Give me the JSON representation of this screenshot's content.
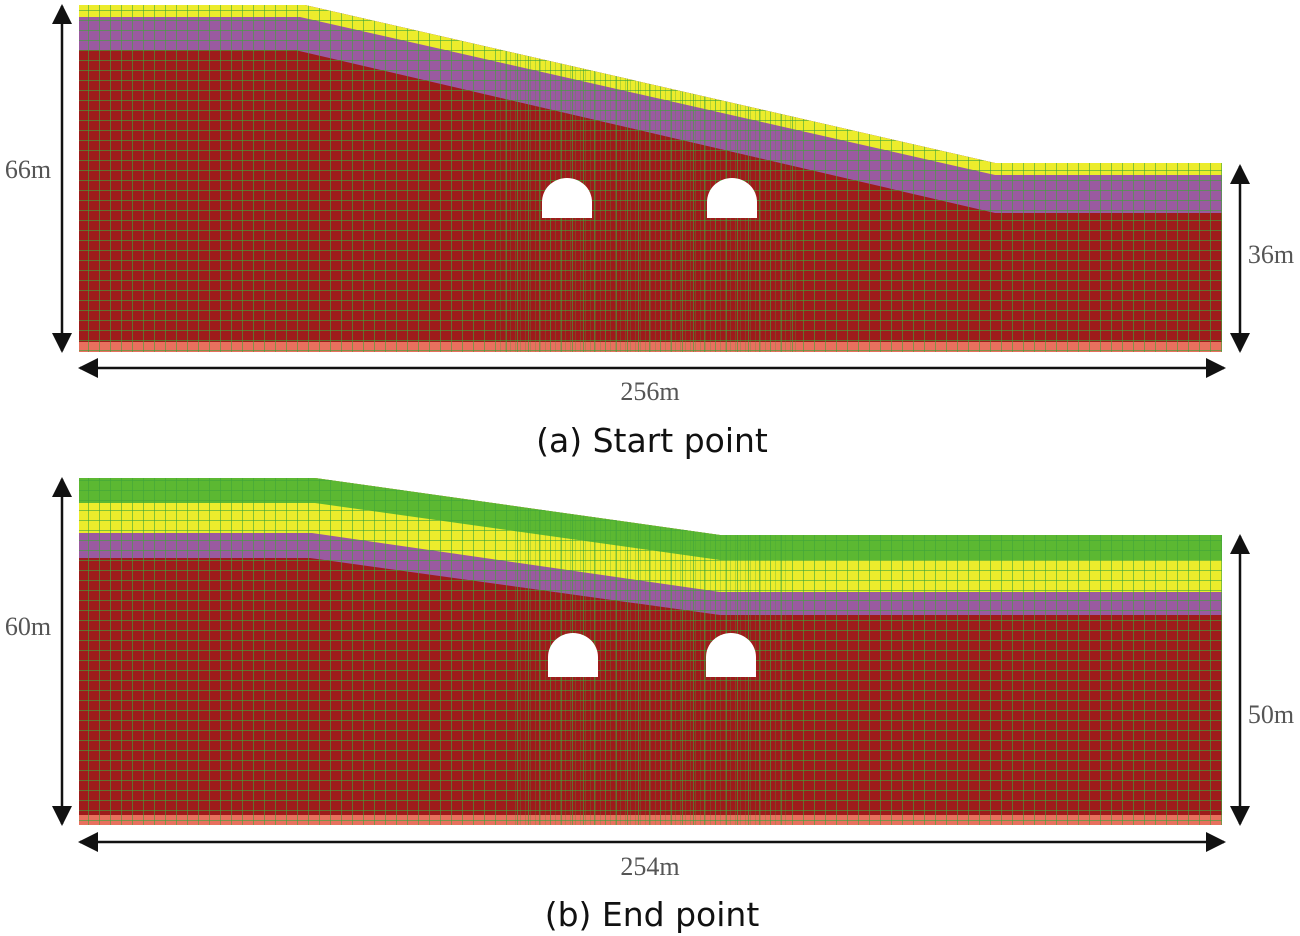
{
  "panels": [
    {
      "caption": "(a) Start point",
      "left_height": "66m",
      "right_height": "36m",
      "width": "256m"
    },
    {
      "caption": "(b) End point",
      "left_height": "60m",
      "right_height": "50m",
      "width": "254m"
    }
  ]
}
